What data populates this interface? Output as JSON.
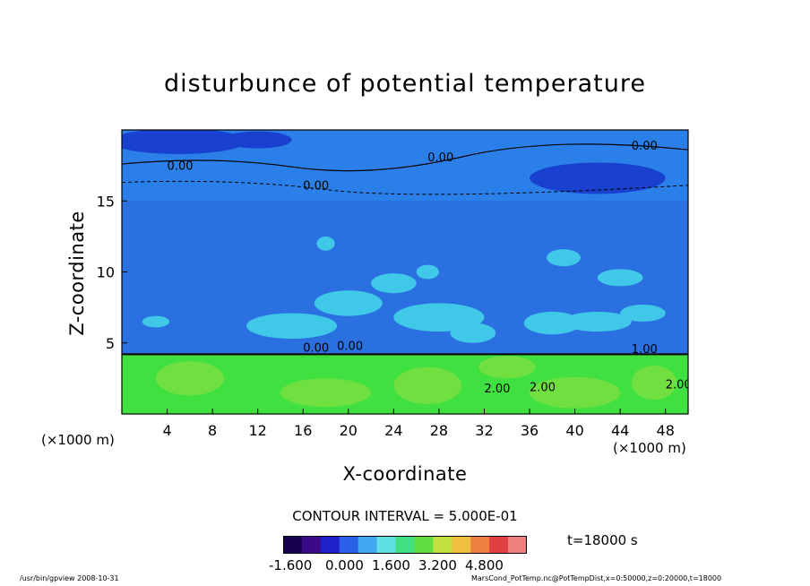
{
  "chart_data": {
    "type": "heatmap",
    "title": "disturbunce of potential temperature",
    "xlabel": "X-coordinate",
    "ylabel": "Z-coordinate",
    "x_unit": "(×1000 m)",
    "z_unit": "(×1000 m)",
    "x_ticks": [
      4,
      8,
      12,
      16,
      20,
      24,
      28,
      32,
      36,
      40,
      44,
      48
    ],
    "z_ticks": [
      5,
      10,
      15
    ],
    "xlim": [
      0,
      50
    ],
    "zlim": [
      0,
      20
    ],
    "contour_interval_label": "CONTOUR INTERVAL = 5.000E-01",
    "time_label": "t=18000 s",
    "contour_labels": [
      "0.00",
      "0.00",
      "0.00",
      "0.00",
      "0.00",
      "0.00",
      "1.00",
      "2.00",
      "2.00",
      "2.00"
    ],
    "colorbar": {
      "tick_labels": [
        "-1.600",
        "0.000",
        "1.600",
        "3.200",
        "4.800"
      ],
      "colors": [
        "#1a0050",
        "#3a0a8a",
        "#2020c8",
        "#2a60e8",
        "#40a8f0",
        "#60e0e0",
        "#40e080",
        "#60e040",
        "#c0e040",
        "#f0c040",
        "#f08040",
        "#e04040",
        "#f08080"
      ]
    },
    "field_colors": {
      "upper_negative": "#1a40d0",
      "upper_background": "#2a80e8",
      "mid_background": "#2a70e0",
      "convective_plumes": "#40c8e8",
      "lower_layer": "#40e040",
      "lower_layer_warm": "#70e040"
    }
  },
  "footer": {
    "left": "/usr/bin/gpview   2008-10-31",
    "right": "MarsCond_PotTemp.nc@PotTempDist,x=0:50000,z=0:20000,t=18000"
  }
}
